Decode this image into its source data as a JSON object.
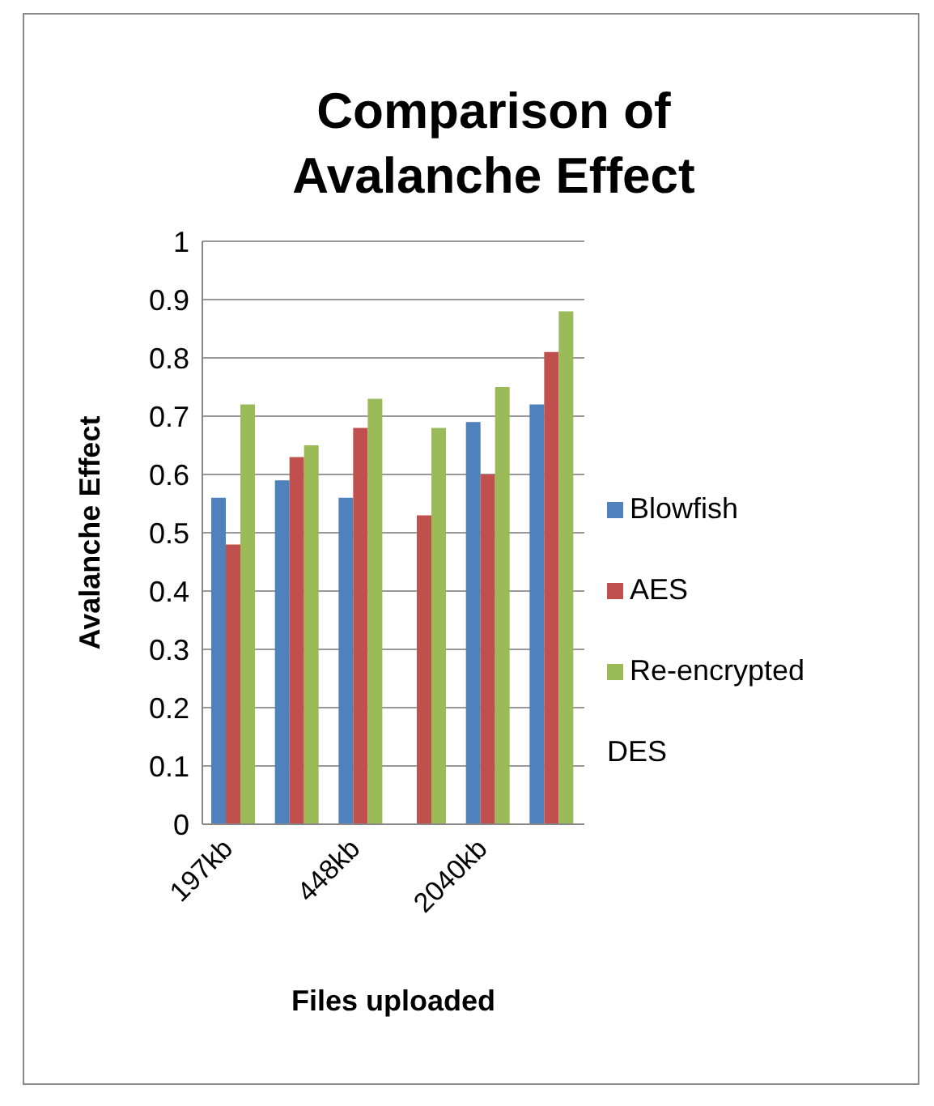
{
  "chart_data": {
    "type": "bar",
    "title": "Comparison of Avalanche Effect",
    "xlabel": "Files uploaded",
    "ylabel": "Avalanche Effect",
    "categories": [
      "197kb",
      null,
      "448kb",
      null,
      "2040kb",
      null
    ],
    "series": [
      {
        "name": "Blowfish",
        "color": "#4f81bd",
        "values": [
          0.56,
          0.59,
          0.56,
          null,
          0.69,
          0.72
        ]
      },
      {
        "name": "AES",
        "color": "#c0504d",
        "values": [
          0.48,
          0.63,
          0.68,
          0.53,
          0.6,
          0.81
        ]
      },
      {
        "name": "Re-encrypted DES",
        "color": "#9bbb59",
        "values": [
          0.72,
          0.65,
          0.73,
          0.68,
          0.75,
          0.88
        ]
      }
    ],
    "ylim": [
      0,
      1
    ],
    "yticks": [
      0,
      0.1,
      0.2,
      0.3,
      0.4,
      0.5,
      0.6,
      0.7,
      0.8,
      0.9,
      1
    ],
    "grid": "y",
    "legend": "right"
  }
}
